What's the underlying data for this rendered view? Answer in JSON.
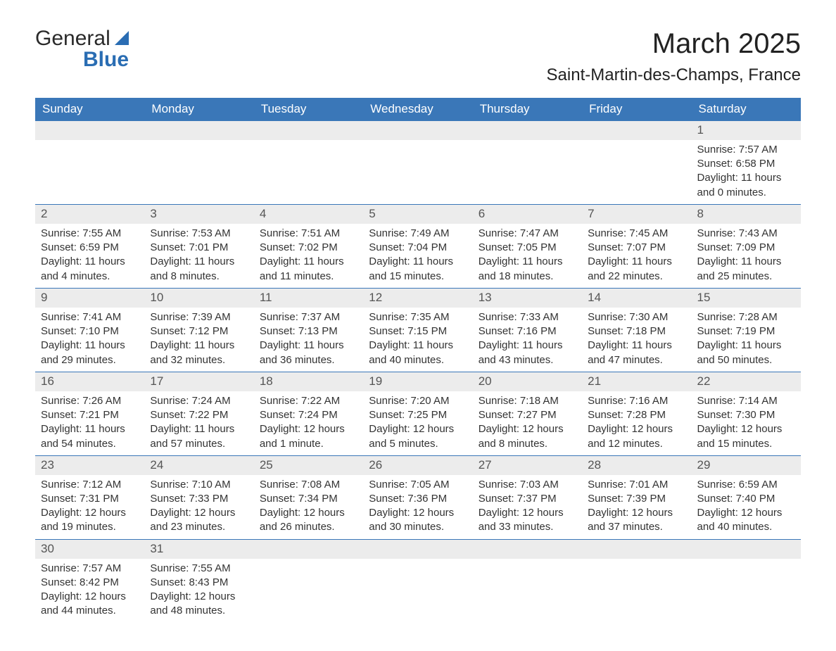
{
  "brand": {
    "word1": "General",
    "word2": "Blue"
  },
  "title": "March 2025",
  "location": "Saint-Martin-des-Champs, France",
  "colors": {
    "header_bg": "#3a77b8",
    "header_fg": "#ffffff",
    "daynum_bg": "#ececec",
    "row_border": "#3a77b8",
    "text": "#333333"
  },
  "typography": {
    "title_fontsize_pt": 30,
    "location_fontsize_pt": 18,
    "weekday_fontsize_pt": 13,
    "body_fontsize_pt": 11
  },
  "weekdays": [
    "Sunday",
    "Monday",
    "Tuesday",
    "Wednesday",
    "Thursday",
    "Friday",
    "Saturday"
  ],
  "weeks": [
    [
      {
        "blank": true
      },
      {
        "blank": true
      },
      {
        "blank": true
      },
      {
        "blank": true
      },
      {
        "blank": true
      },
      {
        "blank": true
      },
      {
        "day": "1",
        "sunrise": "Sunrise: 7:57 AM",
        "sunset": "Sunset: 6:58 PM",
        "daylight1": "Daylight: 11 hours",
        "daylight2": "and 0 minutes."
      }
    ],
    [
      {
        "day": "2",
        "sunrise": "Sunrise: 7:55 AM",
        "sunset": "Sunset: 6:59 PM",
        "daylight1": "Daylight: 11 hours",
        "daylight2": "and 4 minutes."
      },
      {
        "day": "3",
        "sunrise": "Sunrise: 7:53 AM",
        "sunset": "Sunset: 7:01 PM",
        "daylight1": "Daylight: 11 hours",
        "daylight2": "and 8 minutes."
      },
      {
        "day": "4",
        "sunrise": "Sunrise: 7:51 AM",
        "sunset": "Sunset: 7:02 PM",
        "daylight1": "Daylight: 11 hours",
        "daylight2": "and 11 minutes."
      },
      {
        "day": "5",
        "sunrise": "Sunrise: 7:49 AM",
        "sunset": "Sunset: 7:04 PM",
        "daylight1": "Daylight: 11 hours",
        "daylight2": "and 15 minutes."
      },
      {
        "day": "6",
        "sunrise": "Sunrise: 7:47 AM",
        "sunset": "Sunset: 7:05 PM",
        "daylight1": "Daylight: 11 hours",
        "daylight2": "and 18 minutes."
      },
      {
        "day": "7",
        "sunrise": "Sunrise: 7:45 AM",
        "sunset": "Sunset: 7:07 PM",
        "daylight1": "Daylight: 11 hours",
        "daylight2": "and 22 minutes."
      },
      {
        "day": "8",
        "sunrise": "Sunrise: 7:43 AM",
        "sunset": "Sunset: 7:09 PM",
        "daylight1": "Daylight: 11 hours",
        "daylight2": "and 25 minutes."
      }
    ],
    [
      {
        "day": "9",
        "sunrise": "Sunrise: 7:41 AM",
        "sunset": "Sunset: 7:10 PM",
        "daylight1": "Daylight: 11 hours",
        "daylight2": "and 29 minutes."
      },
      {
        "day": "10",
        "sunrise": "Sunrise: 7:39 AM",
        "sunset": "Sunset: 7:12 PM",
        "daylight1": "Daylight: 11 hours",
        "daylight2": "and 32 minutes."
      },
      {
        "day": "11",
        "sunrise": "Sunrise: 7:37 AM",
        "sunset": "Sunset: 7:13 PM",
        "daylight1": "Daylight: 11 hours",
        "daylight2": "and 36 minutes."
      },
      {
        "day": "12",
        "sunrise": "Sunrise: 7:35 AM",
        "sunset": "Sunset: 7:15 PM",
        "daylight1": "Daylight: 11 hours",
        "daylight2": "and 40 minutes."
      },
      {
        "day": "13",
        "sunrise": "Sunrise: 7:33 AM",
        "sunset": "Sunset: 7:16 PM",
        "daylight1": "Daylight: 11 hours",
        "daylight2": "and 43 minutes."
      },
      {
        "day": "14",
        "sunrise": "Sunrise: 7:30 AM",
        "sunset": "Sunset: 7:18 PM",
        "daylight1": "Daylight: 11 hours",
        "daylight2": "and 47 minutes."
      },
      {
        "day": "15",
        "sunrise": "Sunrise: 7:28 AM",
        "sunset": "Sunset: 7:19 PM",
        "daylight1": "Daylight: 11 hours",
        "daylight2": "and 50 minutes."
      }
    ],
    [
      {
        "day": "16",
        "sunrise": "Sunrise: 7:26 AM",
        "sunset": "Sunset: 7:21 PM",
        "daylight1": "Daylight: 11 hours",
        "daylight2": "and 54 minutes."
      },
      {
        "day": "17",
        "sunrise": "Sunrise: 7:24 AM",
        "sunset": "Sunset: 7:22 PM",
        "daylight1": "Daylight: 11 hours",
        "daylight2": "and 57 minutes."
      },
      {
        "day": "18",
        "sunrise": "Sunrise: 7:22 AM",
        "sunset": "Sunset: 7:24 PM",
        "daylight1": "Daylight: 12 hours",
        "daylight2": "and 1 minute."
      },
      {
        "day": "19",
        "sunrise": "Sunrise: 7:20 AM",
        "sunset": "Sunset: 7:25 PM",
        "daylight1": "Daylight: 12 hours",
        "daylight2": "and 5 minutes."
      },
      {
        "day": "20",
        "sunrise": "Sunrise: 7:18 AM",
        "sunset": "Sunset: 7:27 PM",
        "daylight1": "Daylight: 12 hours",
        "daylight2": "and 8 minutes."
      },
      {
        "day": "21",
        "sunrise": "Sunrise: 7:16 AM",
        "sunset": "Sunset: 7:28 PM",
        "daylight1": "Daylight: 12 hours",
        "daylight2": "and 12 minutes."
      },
      {
        "day": "22",
        "sunrise": "Sunrise: 7:14 AM",
        "sunset": "Sunset: 7:30 PM",
        "daylight1": "Daylight: 12 hours",
        "daylight2": "and 15 minutes."
      }
    ],
    [
      {
        "day": "23",
        "sunrise": "Sunrise: 7:12 AM",
        "sunset": "Sunset: 7:31 PM",
        "daylight1": "Daylight: 12 hours",
        "daylight2": "and 19 minutes."
      },
      {
        "day": "24",
        "sunrise": "Sunrise: 7:10 AM",
        "sunset": "Sunset: 7:33 PM",
        "daylight1": "Daylight: 12 hours",
        "daylight2": "and 23 minutes."
      },
      {
        "day": "25",
        "sunrise": "Sunrise: 7:08 AM",
        "sunset": "Sunset: 7:34 PM",
        "daylight1": "Daylight: 12 hours",
        "daylight2": "and 26 minutes."
      },
      {
        "day": "26",
        "sunrise": "Sunrise: 7:05 AM",
        "sunset": "Sunset: 7:36 PM",
        "daylight1": "Daylight: 12 hours",
        "daylight2": "and 30 minutes."
      },
      {
        "day": "27",
        "sunrise": "Sunrise: 7:03 AM",
        "sunset": "Sunset: 7:37 PM",
        "daylight1": "Daylight: 12 hours",
        "daylight2": "and 33 minutes."
      },
      {
        "day": "28",
        "sunrise": "Sunrise: 7:01 AM",
        "sunset": "Sunset: 7:39 PM",
        "daylight1": "Daylight: 12 hours",
        "daylight2": "and 37 minutes."
      },
      {
        "day": "29",
        "sunrise": "Sunrise: 6:59 AM",
        "sunset": "Sunset: 7:40 PM",
        "daylight1": "Daylight: 12 hours",
        "daylight2": "and 40 minutes."
      }
    ],
    [
      {
        "day": "30",
        "sunrise": "Sunrise: 7:57 AM",
        "sunset": "Sunset: 8:42 PM",
        "daylight1": "Daylight: 12 hours",
        "daylight2": "and 44 minutes."
      },
      {
        "day": "31",
        "sunrise": "Sunrise: 7:55 AM",
        "sunset": "Sunset: 8:43 PM",
        "daylight1": "Daylight: 12 hours",
        "daylight2": "and 48 minutes."
      },
      {
        "blank": true
      },
      {
        "blank": true
      },
      {
        "blank": true
      },
      {
        "blank": true
      },
      {
        "blank": true
      }
    ]
  ]
}
